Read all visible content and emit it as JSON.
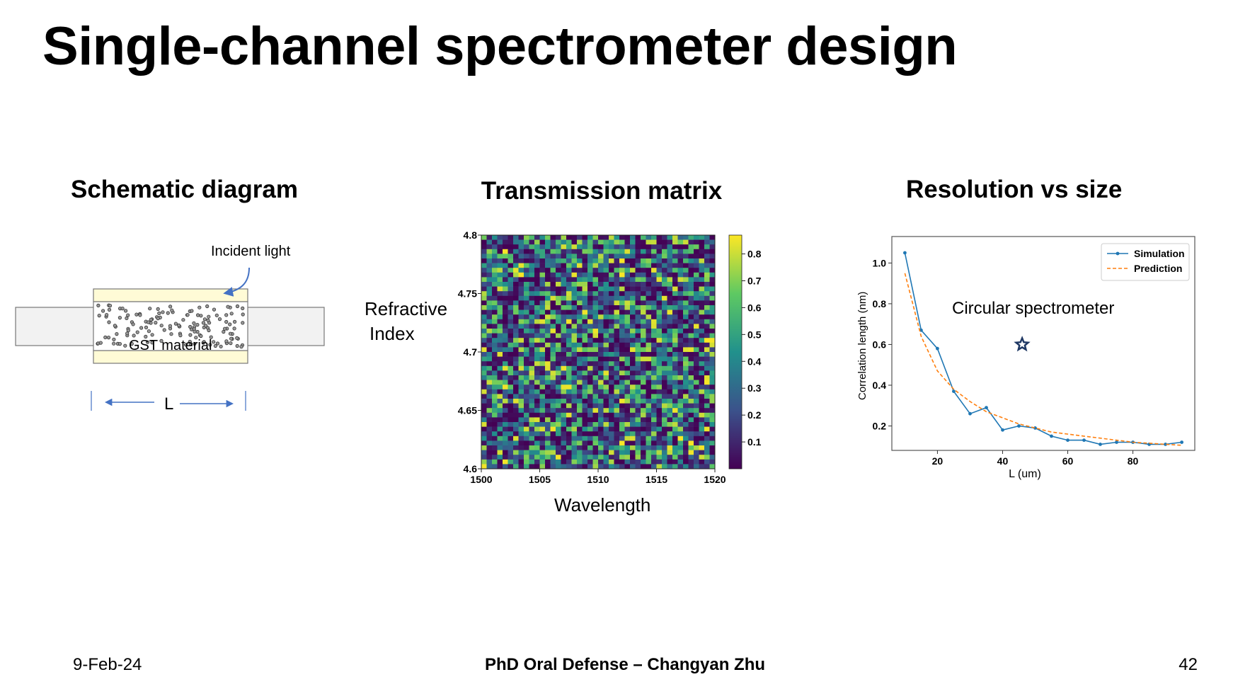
{
  "slide": {
    "title": "Single-channel spectrometer design",
    "footer_date": "9-Feb-24",
    "footer_center": "PhD Oral Defense – Changyan Zhu",
    "footer_page": "42"
  },
  "schematic": {
    "title": "Schematic diagram",
    "incident_label": "Incident light",
    "material_label": "GST material",
    "length_label": "L",
    "colors": {
      "cladding": "#fffbd6",
      "waveguide": "#f2f2f2",
      "arrow": "#4472c4"
    }
  },
  "heatmap": {
    "title": "Transmission matrix",
    "ylabel_line1": "Refractive",
    "ylabel_line2": "Index",
    "xlabel": "Wavelength",
    "colormap": "viridis"
  },
  "resolution": {
    "title": "Resolution vs size",
    "annotation": "Circular spectrometer",
    "annotation_marker": "star-icon"
  },
  "chart_data": [
    {
      "type": "heatmap",
      "x_range": [
        1500,
        1520
      ],
      "y_range": [
        4.6,
        4.8
      ],
      "x_ticks": [
        "1500",
        "1505",
        "1510",
        "1515",
        "1520"
      ],
      "y_ticks": [
        "4.6",
        "4.65",
        "4.7",
        "4.75",
        "4.8"
      ],
      "colorbar_range": [
        0.0,
        0.87
      ],
      "colorbar_ticks": [
        "0.1",
        "0.2",
        "0.3",
        "0.4",
        "0.5",
        "0.6",
        "0.7",
        "0.8"
      ],
      "xlabel": "Wavelength",
      "ylabel": "Refractive Index"
    },
    {
      "type": "line",
      "xlabel": "L (um)",
      "ylabel": "Correlation length (nm)",
      "xlim": [
        6,
        99
      ],
      "ylim": [
        0.08,
        1.13
      ],
      "x_ticks": [
        "20",
        "40",
        "60",
        "80"
      ],
      "y_ticks": [
        "0.2",
        "0.4",
        "0.6",
        "0.8",
        "1.0"
      ],
      "legend_position": "top-right",
      "series": [
        {
          "name": "Simulation",
          "color": "#1f77b4",
          "style": "solid-with-markers",
          "x": [
            10,
            15,
            20,
            25,
            30,
            35,
            40,
            45,
            50,
            55,
            60,
            65,
            70,
            75,
            80,
            85,
            90,
            95
          ],
          "y": [
            1.05,
            0.67,
            0.58,
            0.37,
            0.26,
            0.29,
            0.18,
            0.2,
            0.19,
            0.15,
            0.13,
            0.13,
            0.11,
            0.12,
            0.12,
            0.11,
            0.11,
            0.12
          ]
        },
        {
          "name": "Prediction",
          "color": "#ff7f0e",
          "style": "dashed",
          "x": [
            10,
            15,
            20,
            25,
            30,
            35,
            40,
            45,
            50,
            55,
            60,
            65,
            70,
            75,
            80,
            85,
            90,
            95
          ],
          "y": [
            0.95,
            0.64,
            0.47,
            0.38,
            0.32,
            0.27,
            0.24,
            0.21,
            0.19,
            0.17,
            0.16,
            0.15,
            0.14,
            0.13,
            0.12,
            0.115,
            0.11,
            0.105
          ]
        }
      ],
      "annotation": {
        "text": "Circular spectrometer",
        "marker": "star",
        "x": 46,
        "y": 0.6
      }
    }
  ]
}
